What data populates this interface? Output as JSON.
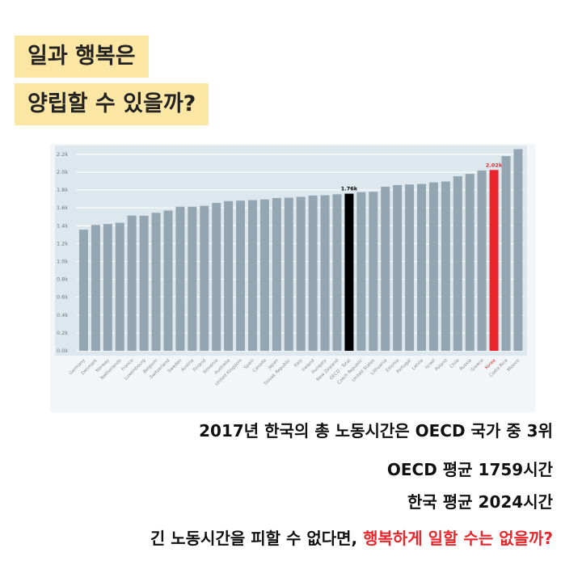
{
  "header": {
    "lines": [
      "일과 행복은",
      "양립할 수 있을까?"
    ]
  },
  "captions": {
    "lines": [
      "2017년 한국의 총 노동시간은 OECD 국가 중 3위",
      "OECD 평균 1759시간",
      "한국 평균 2024시간"
    ],
    "last": [
      "긴 노동시간을 피할 수 없다면,",
      "행복하게 일할 수는 없을까?"
    ]
  },
  "chart_data": {
    "type": "bar",
    "categories": [
      "Germany",
      "Denmark",
      "Norway",
      "Netherlands",
      "France",
      "Luxembourg",
      "Belgium",
      "Switzerland",
      "Sweden",
      "Austria",
      "Finland",
      "Slovenia",
      "Australia",
      "United Kingdom",
      "Spain",
      "Canada",
      "Japan",
      "Slovak Republic",
      "Italy",
      "Ireland",
      "Hungary",
      "New Zealand",
      "OECD - Total",
      "Czech Republic",
      "United States",
      "Lithuania",
      "Estonia",
      "Portugal",
      "Latvia",
      "Israel",
      "Poland",
      "Chile",
      "Russia",
      "Greece",
      "Korea",
      "Costa Rica",
      "Mexico"
    ],
    "values": [
      1356,
      1408,
      1419,
      1433,
      1514,
      1512,
      1545,
      1570,
      1613,
      1613,
      1623,
      1655,
      1676,
      1681,
      1687,
      1695,
      1710,
      1714,
      1723,
      1738,
      1741,
      1752,
      1759,
      1776,
      1780,
      1837,
      1855,
      1862,
      1868,
      1885,
      1895,
      1954,
      1980,
      2018,
      2024,
      2179,
      2257
    ],
    "value_labels": [
      null,
      null,
      null,
      null,
      null,
      null,
      null,
      null,
      null,
      null,
      null,
      null,
      null,
      null,
      null,
      null,
      null,
      null,
      null,
      null,
      null,
      null,
      "1.76k",
      null,
      null,
      null,
      null,
      null,
      null,
      null,
      null,
      null,
      null,
      null,
      "2.02k",
      null,
      null
    ],
    "colors": [
      "#93a6b2",
      "#93a6b2",
      "#93a6b2",
      "#93a6b2",
      "#93a6b2",
      "#93a6b2",
      "#93a6b2",
      "#93a6b2",
      "#93a6b2",
      "#93a6b2",
      "#93a6b2",
      "#93a6b2",
      "#93a6b2",
      "#93a6b2",
      "#93a6b2",
      "#93a6b2",
      "#93a6b2",
      "#93a6b2",
      "#93a6b2",
      "#93a6b2",
      "#93a6b2",
      "#93a6b2",
      "#000000",
      "#93a6b2",
      "#93a6b2",
      "#93a6b2",
      "#93a6b2",
      "#93a6b2",
      "#93a6b2",
      "#93a6b2",
      "#93a6b2",
      "#93a6b2",
      "#93a6b2",
      "#93a6b2",
      "#e8262b",
      "#93a6b2",
      "#93a6b2"
    ],
    "ylim": [
      0,
      2280
    ],
    "yticks": [
      {
        "value": 0,
        "label": "0.0k"
      },
      {
        "value": 200,
        "label": "0.2k"
      },
      {
        "value": 400,
        "label": "0.4k"
      },
      {
        "value": 600,
        "label": "0.6k"
      },
      {
        "value": 800,
        "label": "0.8k"
      },
      {
        "value": 1000,
        "label": "1.0k"
      },
      {
        "value": 1200,
        "label": "1.2k"
      },
      {
        "value": 1400,
        "label": "1.4k"
      },
      {
        "value": 1600,
        "label": "1.6k"
      },
      {
        "value": 1800,
        "label": "1.8k"
      },
      {
        "value": 2000,
        "label": "2.0k"
      },
      {
        "value": 2200,
        "label": "2.2k"
      }
    ],
    "grid": true
  }
}
